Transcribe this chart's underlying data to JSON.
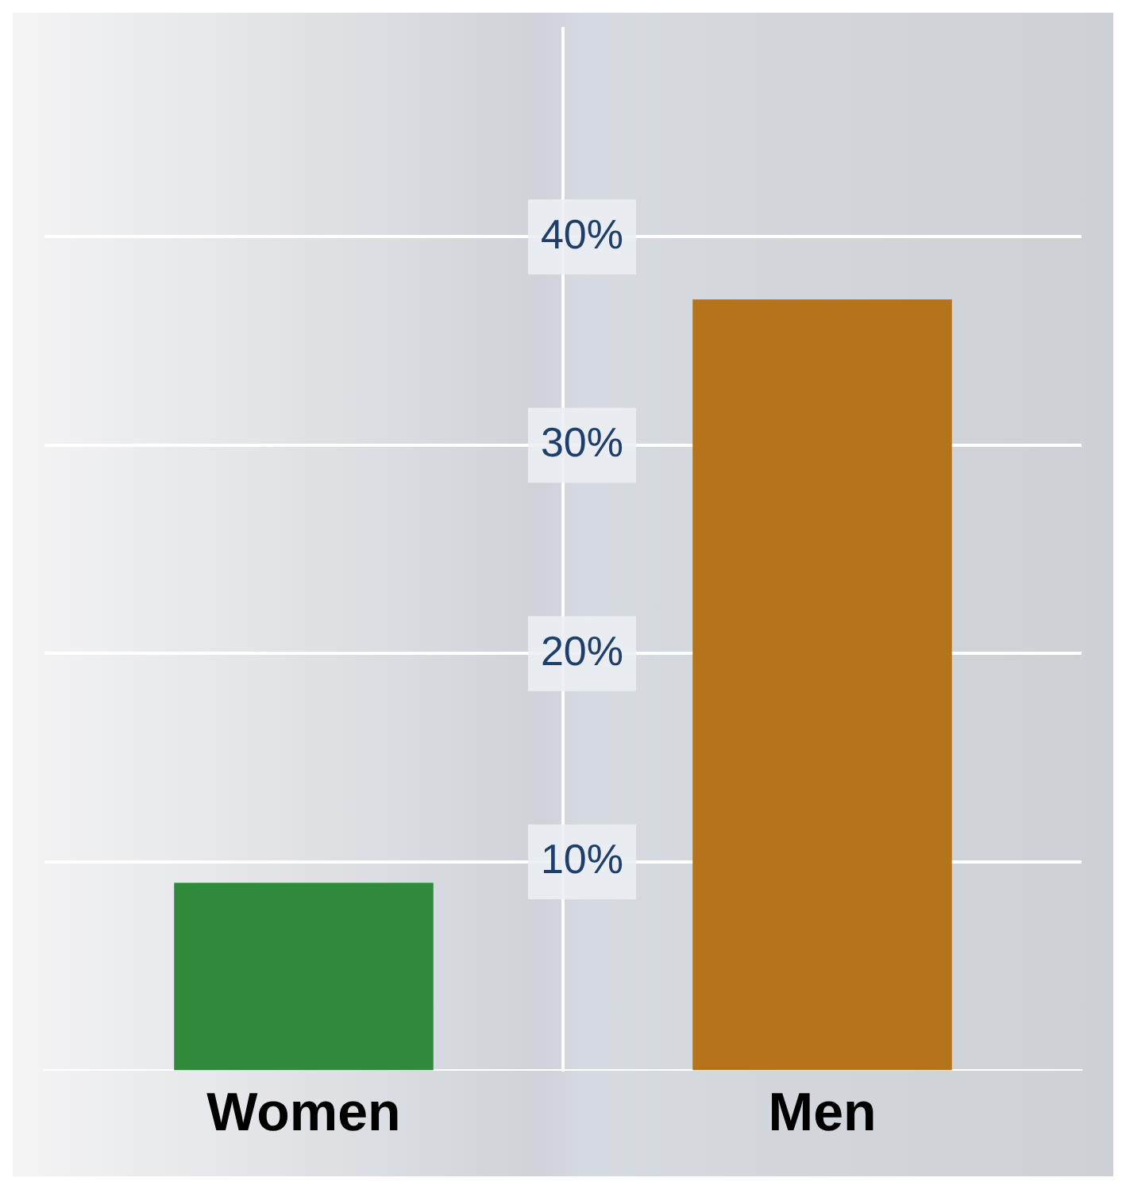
{
  "chart_data": {
    "type": "bar",
    "categories": [
      "Women",
      "Men"
    ],
    "values": [
      9,
      37
    ],
    "colors": [
      "#2f8a3c",
      "#b5731c"
    ],
    "ylim": [
      0,
      50
    ],
    "yticks": [
      {
        "value": 10,
        "label": "10%"
      },
      {
        "value": 20,
        "label": "20%"
      },
      {
        "value": 30,
        "label": "30%"
      },
      {
        "value": 40,
        "label": "40%"
      }
    ],
    "grid": "y",
    "legend": false
  }
}
